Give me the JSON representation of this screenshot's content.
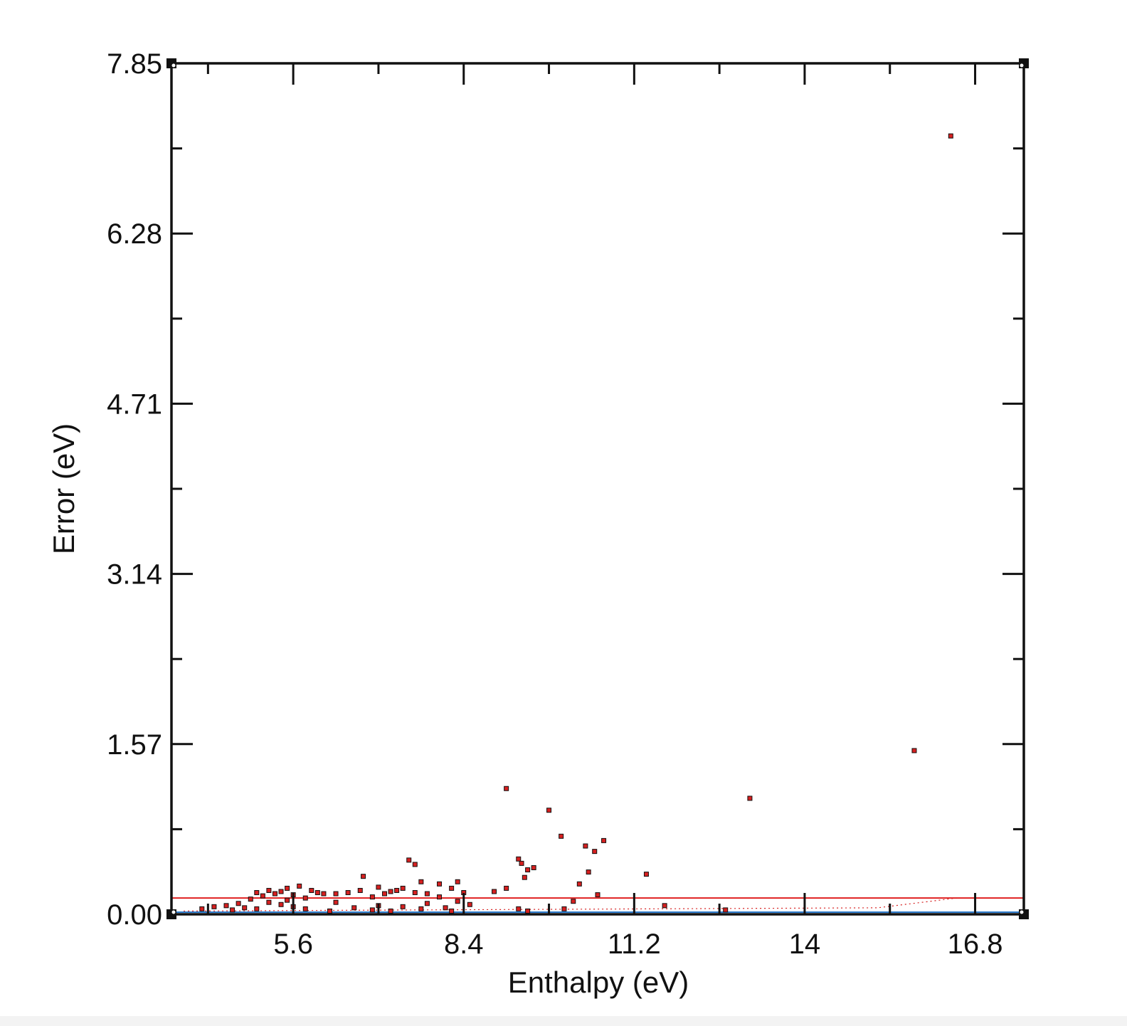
{
  "chart_data": {
    "type": "scatter",
    "xlabel": "Enthalpy (eV)",
    "ylabel": "Error (eV)",
    "xlim": [
      3.6,
      17.6
    ],
    "ylim": [
      0,
      7.85
    ],
    "x_ticks": [
      5.6,
      8.4,
      11.2,
      14,
      16.8
    ],
    "x_tick_labels": [
      "5.6",
      "8.4",
      "11.2",
      "14",
      "16.8"
    ],
    "y_ticks": [
      0,
      1.57,
      3.14,
      4.71,
      6.28,
      7.85
    ],
    "y_tick_labels": [
      "0.00",
      "1.57",
      "3.14",
      "4.71",
      "6.28",
      "7.85"
    ],
    "grid": false,
    "legend": "none",
    "colors": {
      "points": "#d62020",
      "point_edge": "#111111",
      "red_line": "#e02020",
      "blue_line": "#2a78c8",
      "dotted_line": "#d62020"
    },
    "reference_lines": [
      {
        "style": "solid",
        "color": "red",
        "y": 0.15
      },
      {
        "style": "solid",
        "color": "blue",
        "y": 0.02
      },
      {
        "style": "dotted",
        "color": "red",
        "x": [
          3.8,
          15.2,
          16.5
        ],
        "y": [
          0.03,
          0.06,
          0.15
        ]
      }
    ],
    "series": [
      {
        "points": [
          [
            16.4,
            7.18
          ],
          [
            15.8,
            1.51
          ],
          [
            13.1,
            1.07
          ],
          [
            9.1,
            1.16
          ],
          [
            9.8,
            0.96
          ],
          [
            10.0,
            0.72
          ],
          [
            10.4,
            0.63
          ],
          [
            10.55,
            0.58
          ],
          [
            10.7,
            0.68
          ],
          [
            9.3,
            0.51
          ],
          [
            9.35,
            0.47
          ],
          [
            9.45,
            0.41
          ],
          [
            9.55,
            0.43
          ],
          [
            9.4,
            0.34
          ],
          [
            10.45,
            0.39
          ],
          [
            11.4,
            0.37
          ],
          [
            10.3,
            0.28
          ],
          [
            10.6,
            0.18
          ],
          [
            9.1,
            0.24
          ],
          [
            8.9,
            0.21
          ],
          [
            7.5,
            0.5
          ],
          [
            7.6,
            0.46
          ],
          [
            6.75,
            0.35
          ],
          [
            7.7,
            0.3
          ],
          [
            8.3,
            0.3
          ],
          [
            8.0,
            0.28
          ],
          [
            10.2,
            0.12
          ],
          [
            11.7,
            0.08
          ],
          [
            12.7,
            0.04
          ],
          [
            9.3,
            0.05
          ],
          [
            10.05,
            0.05
          ],
          [
            9.45,
            0.03
          ],
          [
            4.1,
            0.05
          ],
          [
            4.3,
            0.07
          ],
          [
            4.5,
            0.08
          ],
          [
            4.7,
            0.1
          ],
          [
            4.9,
            0.14
          ],
          [
            5.0,
            0.2
          ],
          [
            5.1,
            0.17
          ],
          [
            5.2,
            0.22
          ],
          [
            5.3,
            0.19
          ],
          [
            5.4,
            0.21
          ],
          [
            5.5,
            0.24
          ],
          [
            5.6,
            0.18
          ],
          [
            5.7,
            0.26
          ],
          [
            5.8,
            0.15
          ],
          [
            5.9,
            0.22
          ],
          [
            6.0,
            0.2
          ],
          [
            6.1,
            0.19
          ],
          [
            6.3,
            0.19
          ],
          [
            6.5,
            0.2
          ],
          [
            6.7,
            0.22
          ],
          [
            6.9,
            0.16
          ],
          [
            7.0,
            0.25
          ],
          [
            7.1,
            0.19
          ],
          [
            7.2,
            0.21
          ],
          [
            7.3,
            0.22
          ],
          [
            7.4,
            0.24
          ],
          [
            7.6,
            0.2
          ],
          [
            7.8,
            0.19
          ],
          [
            8.0,
            0.16
          ],
          [
            8.2,
            0.24
          ],
          [
            8.4,
            0.2
          ],
          [
            8.5,
            0.09
          ],
          [
            4.6,
            0.04
          ],
          [
            4.8,
            0.06
          ],
          [
            5.0,
            0.05
          ],
          [
            5.2,
            0.11
          ],
          [
            5.4,
            0.09
          ],
          [
            5.6,
            0.07
          ],
          [
            5.8,
            0.05
          ],
          [
            6.2,
            0.03
          ],
          [
            6.6,
            0.06
          ],
          [
            7.0,
            0.08
          ],
          [
            7.4,
            0.07
          ],
          [
            7.8,
            0.1
          ],
          [
            8.1,
            0.06
          ],
          [
            8.3,
            0.12
          ],
          [
            6.9,
            0.04
          ],
          [
            7.2,
            0.03
          ],
          [
            7.7,
            0.05
          ],
          [
            8.2,
            0.03
          ],
          [
            5.5,
            0.13
          ],
          [
            6.3,
            0.11
          ]
        ]
      }
    ]
  }
}
